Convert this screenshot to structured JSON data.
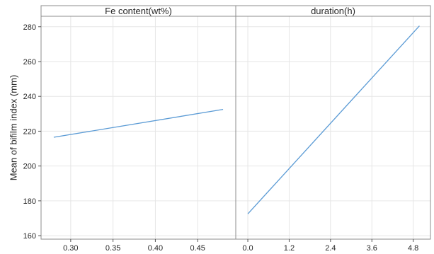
{
  "chart_data": {
    "type": "line",
    "ylabel": "Mean of bifilm index (mm)",
    "ylim": [
      158,
      286
    ],
    "yticks": [
      160,
      180,
      200,
      220,
      240,
      260,
      280
    ],
    "grid": true,
    "panels": [
      {
        "title": "Fe content(wt%)",
        "xlim": [
          0.265,
          0.495
        ],
        "xticks": [
          0.3,
          0.35,
          0.4,
          0.45
        ],
        "xtick_labels": [
          "0.30",
          "0.35",
          "0.40",
          "0.45"
        ],
        "series": [
          {
            "x": [
              0.28,
              0.48
            ],
            "y": [
              216.5,
              232.5
            ]
          }
        ]
      },
      {
        "title": "duration(h)",
        "xlim": [
          -0.35,
          5.3
        ],
        "xticks": [
          0.0,
          1.2,
          2.4,
          3.6,
          4.8
        ],
        "xtick_labels": [
          "0.0",
          "1.2",
          "2.4",
          "3.6",
          "4.8"
        ],
        "series": [
          {
            "x": [
              0.0,
              4.98
            ],
            "y": [
              172.5,
              280.5
            ]
          }
        ]
      }
    ],
    "line_color": "#5b9bd5"
  }
}
